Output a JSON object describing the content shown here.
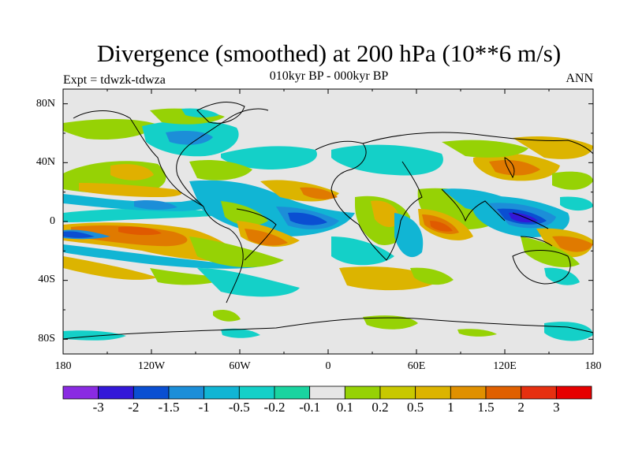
{
  "title": "Divergence (smoothed) at 200 hPa (10**6 m/s)",
  "subtitle": "010kyr BP - 000kyr BP",
  "left_label": "Expt = tdwzk-tdwza",
  "right_label": "ANN",
  "lat_ticks": [
    "80N",
    "40N",
    "0",
    "40S",
    "80S"
  ],
  "lon_ticks": [
    "180",
    "120W",
    "60W",
    "0",
    "60E",
    "120E",
    "180"
  ],
  "colorbar": {
    "labels": [
      "-3",
      "-2",
      "-1.5",
      "-1",
      "-0.5",
      "-0.2",
      "-0.1",
      "0.1",
      "0.2",
      "0.5",
      "1",
      "1.5",
      "2",
      "3"
    ],
    "colors": [
      "#8a2be2",
      "#3318d8",
      "#0a4fd2",
      "#1c8ed8",
      "#11b5d4",
      "#14d0c8",
      "#1ad4a0",
      "#e6e6e6",
      "#96d205",
      "#c8c800",
      "#dcb400",
      "#e09000",
      "#e06000",
      "#e63010",
      "#e60000"
    ]
  }
}
